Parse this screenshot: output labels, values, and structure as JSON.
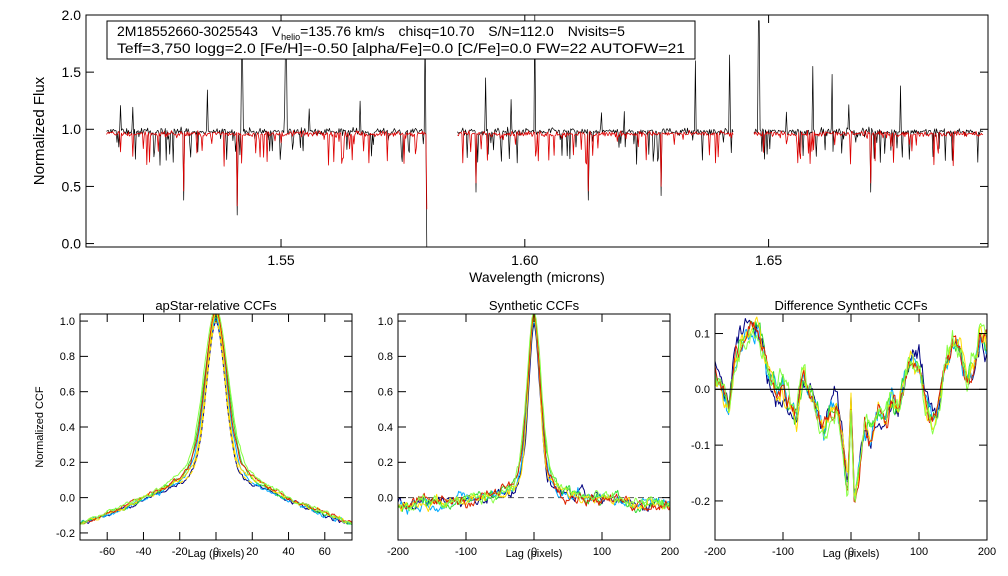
{
  "info_box": {
    "star_id": "2M18552660-3025543",
    "v_label": "V",
    "v_sub": "helio",
    "v_value": "=135.76 km/s",
    "chisq": "chisq=10.70",
    "snr": "S/N=112.0",
    "nvisits": "Nvisits=5",
    "line2": "Teff=3,750 logg=2.0 [Fe/H]=-0.50 [alpha/Fe]=0.0 [C/Fe]=0.0 FW=22 AUTOFW=21"
  },
  "colors": {
    "observed": "#000000",
    "model": "#dd0000",
    "zero_line": "#555555",
    "visits": [
      "#000080",
      "#00aaff",
      "#33dd33",
      "#ffdd00",
      "#dd2200",
      "#88ff44"
    ]
  },
  "chart_data": [
    {
      "id": "spectrum",
      "type": "line",
      "title": "",
      "xlabel": "Wavelength (microns)",
      "ylabel": "Normalized Flux",
      "xlim": [
        1.51,
        1.695
      ],
      "ylim": [
        -0.03,
        2.0
      ],
      "xticks": [
        1.55,
        1.6,
        1.65
      ],
      "xtick_labels": [
        "1.55",
        "1.60",
        "1.65"
      ],
      "yticks": [
        0.0,
        0.5,
        1.0,
        1.5,
        2.0
      ],
      "ytick_labels": [
        "0.0",
        "0.5",
        "1.0",
        "1.5",
        "2.0"
      ],
      "chip_ranges": [
        [
          1.5142,
          1.58
        ],
        [
          1.5862,
          1.6428
        ],
        [
          1.647,
          1.694
        ]
      ],
      "series": [
        {
          "name": "observed",
          "color": "#000000",
          "baseline": 0.98,
          "scatter": 0.09
        },
        {
          "name": "model",
          "color": "#dd0000",
          "baseline": 0.96,
          "scatter": 0.07
        }
      ],
      "features": [
        {
          "x": 1.53,
          "y": 0.38
        },
        {
          "x": 1.541,
          "y": 0.25
        },
        {
          "x": 1.542,
          "y": 1.65
        },
        {
          "x": 1.551,
          "y": 1.75
        },
        {
          "x": 1.5795,
          "y": 1.88
        },
        {
          "x": 1.58,
          "y": -0.03
        },
        {
          "x": 1.59,
          "y": 0.45
        },
        {
          "x": 1.592,
          "y": 1.45
        },
        {
          "x": 1.602,
          "y": 2.0
        },
        {
          "x": 1.613,
          "y": 0.38
        },
        {
          "x": 1.628,
          "y": 0.42
        },
        {
          "x": 1.635,
          "y": 1.6
        },
        {
          "x": 1.642,
          "y": 1.65
        },
        {
          "x": 1.648,
          "y": 1.95
        },
        {
          "x": 1.659,
          "y": 1.55
        },
        {
          "x": 1.663,
          "y": 1.48
        },
        {
          "x": 1.671,
          "y": 0.45
        },
        {
          "x": 1.677,
          "y": 1.38
        }
      ]
    },
    {
      "id": "apstar-ccf",
      "type": "line",
      "title": "apStar-relative CCFs",
      "xlabel": "Lag (pixels)",
      "ylabel": "Normalized CCF",
      "xlim": [
        -75,
        75
      ],
      "ylim": [
        -0.24,
        1.04
      ],
      "xticks": [
        -60,
        -40,
        -20,
        0,
        20,
        40,
        60
      ],
      "xtick_labels": [
        "-60",
        "-40",
        "-20",
        "0",
        "20",
        "40",
        "60"
      ],
      "yticks": [
        -0.2,
        0.0,
        0.2,
        0.4,
        0.6,
        0.8,
        1.0
      ],
      "ytick_labels": [
        "-0.2",
        "0.0",
        "0.2",
        "0.4",
        "0.6",
        "0.8",
        "1.0"
      ],
      "zero_dashed": false,
      "peak_width": 5,
      "wing_amp": 0.22,
      "wing_width": 30,
      "edge_min": -0.17,
      "noise": 0.015
    },
    {
      "id": "synthetic-ccf",
      "type": "line",
      "title": "Synthetic CCFs",
      "xlabel": "Lag (pixels)",
      "ylabel": "",
      "xlim": [
        -200,
        200
      ],
      "ylim": [
        -0.24,
        1.04
      ],
      "xticks": [
        -200,
        -100,
        0,
        100,
        200
      ],
      "xtick_labels": [
        "-200",
        "-100",
        "0",
        "100",
        "200"
      ],
      "yticks": [
        0.0,
        0.2,
        0.4,
        0.6,
        0.8,
        1.0
      ],
      "ytick_labels": [
        "0.0",
        "0.2",
        "0.4",
        "0.6",
        "0.8",
        "1.0"
      ],
      "zero_dashed": true,
      "peak_width": 8,
      "wing_amp": 0.18,
      "wing_width": 28,
      "edge_min": -0.04,
      "noise": 0.04
    },
    {
      "id": "difference-ccf",
      "type": "line",
      "title": "Difference Synthetic CCFs",
      "xlabel": "Lag (pixels)",
      "ylabel": "",
      "xlim": [
        -200,
        200
      ],
      "ylim": [
        -0.27,
        0.135
      ],
      "xticks": [
        -200,
        -100,
        0,
        100,
        200
      ],
      "xtick_labels": [
        "-200",
        "-100",
        "0",
        "100",
        "200"
      ],
      "yticks": [
        -0.2,
        -0.1,
        0.0,
        0.1
      ],
      "ytick_labels": [
        "-0.2",
        "-0.1",
        "0.0",
        "0.1"
      ],
      "zero_dashed": false,
      "anchors": [
        [
          -200,
          0.02
        ],
        [
          -190,
          0.0
        ],
        [
          -180,
          -0.04
        ],
        [
          -170,
          0.05
        ],
        [
          -160,
          0.09
        ],
        [
          -150,
          0.11
        ],
        [
          -140,
          0.12
        ],
        [
          -130,
          0.08
        ],
        [
          -120,
          0.03
        ],
        [
          -110,
          0.0
        ],
        [
          -100,
          0.01
        ],
        [
          -90,
          -0.03
        ],
        [
          -80,
          -0.05
        ],
        [
          -70,
          0.02
        ],
        [
          -60,
          -0.01
        ],
        [
          -50,
          -0.05
        ],
        [
          -40,
          -0.08
        ],
        [
          -30,
          -0.04
        ],
        [
          -20,
          -0.03
        ],
        [
          -10,
          -0.12
        ],
        [
          -5,
          -0.18
        ],
        [
          0,
          -0.02
        ],
        [
          5,
          -0.19
        ],
        [
          10,
          -0.15
        ],
        [
          20,
          -0.06
        ],
        [
          30,
          -0.08
        ],
        [
          40,
          -0.04
        ],
        [
          50,
          -0.06
        ],
        [
          60,
          -0.02
        ],
        [
          70,
          -0.04
        ],
        [
          80,
          0.02
        ],
        [
          90,
          0.05
        ],
        [
          100,
          0.04
        ],
        [
          110,
          -0.03
        ],
        [
          120,
          -0.06
        ],
        [
          130,
          -0.02
        ],
        [
          140,
          0.06
        ],
        [
          150,
          0.1
        ],
        [
          160,
          0.08
        ],
        [
          170,
          0.02
        ],
        [
          180,
          0.05
        ],
        [
          190,
          0.1
        ],
        [
          200,
          0.08
        ]
      ],
      "noise": 0.015
    }
  ]
}
